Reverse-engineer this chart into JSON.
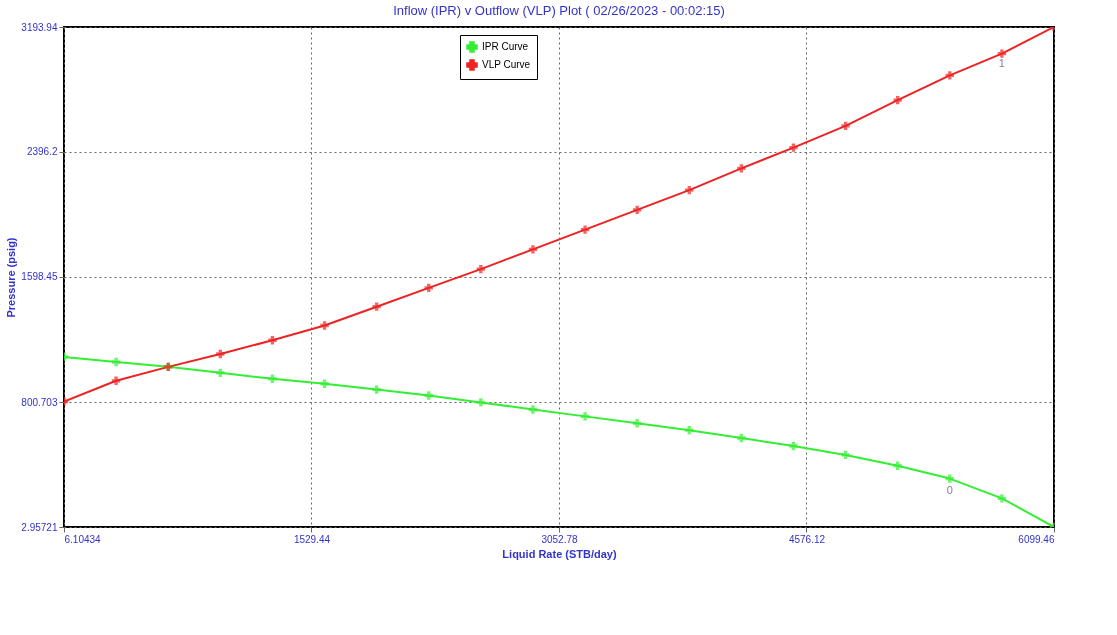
{
  "chart_data": {
    "type": "line",
    "title": "Inflow (IPR) v Outflow (VLP) Plot ( 02/26/2023 - 00:02:15)",
    "xlabel": "Liquid Rate  (STB/day)",
    "ylabel": "Pressure  (psig)",
    "x": [
      6.10434,
      326.8,
      647.5,
      968.2,
      1288.9,
      1609.6,
      1930.3,
      2251.0,
      2571.7,
      2892.4,
      3213.1,
      3533.8,
      3854.5,
      4175.2,
      4495.9,
      4816.6,
      5137.3,
      5458.0,
      5778.8,
      6099.46
    ],
    "series": [
      {
        "name": "IPR Curve",
        "color": "#33ee33",
        "values": [
          1088,
          1056,
          1025,
          987,
          949,
          917,
          880,
          842,
          798,
          753,
          709,
          665,
          621,
          571,
          520,
          463,
          394,
          312,
          186,
          3
        ]
      },
      {
        "name": "VLP Curve",
        "color": "#ee2222",
        "values": [
          804,
          936,
          1025,
          1107,
          1195,
          1289,
          1409,
          1529,
          1649,
          1775,
          1901,
          2027,
          2153,
          2292,
          2424,
          2563,
          2727,
          2885,
          3024,
          3193.94
        ]
      }
    ],
    "xlim": [
      6.10434,
      6099.46
    ],
    "xticks": [
      6.10434,
      1529.44,
      3052.78,
      4576.12,
      6099.46
    ],
    "ylim": [
      2.95721,
      3193.94
    ],
    "yticks": [
      2.95721,
      800.703,
      1598.45,
      2396.2,
      3193.94
    ],
    "annotations": [
      {
        "text": "0",
        "x": 5458.0,
        "y": 268
      },
      {
        "text": "1",
        "x": 5778.8,
        "y": 2998
      }
    ],
    "grid": true,
    "legend": "top",
    "marker": "cross",
    "line_style": "solid"
  }
}
